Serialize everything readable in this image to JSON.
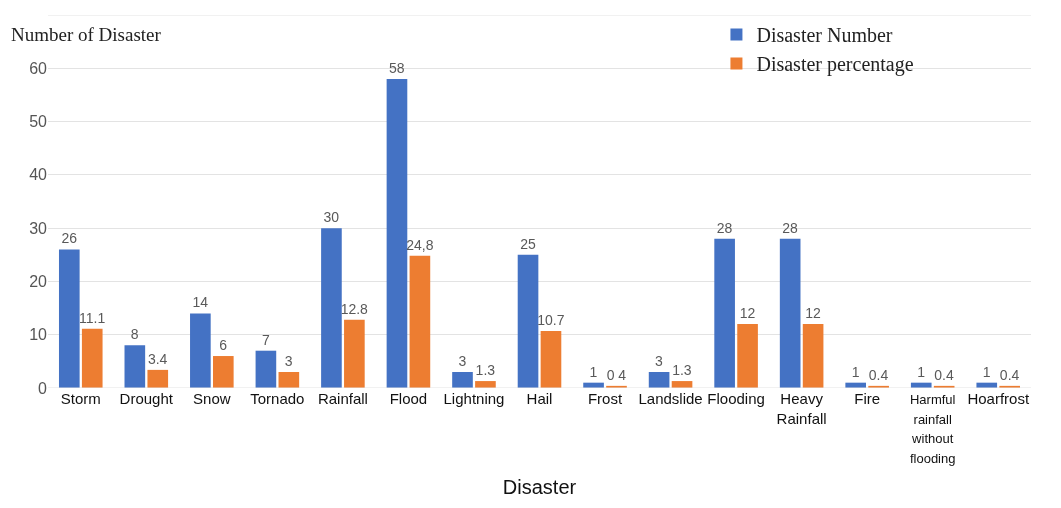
{
  "chart_data": {
    "type": "bar",
    "ylabel": "Number of Disaster",
    "xlabel": "Disaster",
    "categories": [
      "Storm",
      "Drought",
      "Snow",
      "Tornado",
      "Rainfall",
      "Flood",
      "Lightning",
      "Hail",
      "Frost",
      "Landslide",
      "Flooding",
      "Heavy\nRainfall",
      "Fire",
      "Harmful rainfall\nwithout flooding",
      "Hoarfrost"
    ],
    "series": [
      {
        "name": "Disaster Number",
        "color": "#4472c4",
        "values": [
          26,
          8,
          14,
          7,
          30,
          58,
          3,
          25,
          1,
          3,
          28,
          28,
          1,
          1,
          1
        ],
        "value_labels": [
          "26",
          "8",
          "14",
          "7",
          "30",
          "58",
          "3",
          "25",
          "1",
          "3",
          "28",
          "28",
          "1",
          "1",
          "1"
        ]
      },
      {
        "name": "Disaster percentage",
        "color": "#ed7d31",
        "values": [
          11.1,
          3.4,
          6,
          3,
          12.8,
          24.8,
          1.3,
          10.7,
          0.4,
          1.3,
          12,
          12,
          0.4,
          0.4,
          0.4
        ],
        "value_labels": [
          "11.1",
          "3.4",
          "6",
          "3",
          "12.8",
          "24,8",
          "1.3",
          "10.7",
          "0 4",
          "1.3",
          "12",
          "12",
          "0.4",
          "0.4",
          "0.4"
        ]
      }
    ],
    "ylim": [
      0,
      70
    ],
    "yticks": [
      0,
      10,
      20,
      30,
      40,
      50,
      60,
      {
        "value": 70,
        "label": null
      }
    ],
    "grid": "y",
    "legend": "top right"
  }
}
